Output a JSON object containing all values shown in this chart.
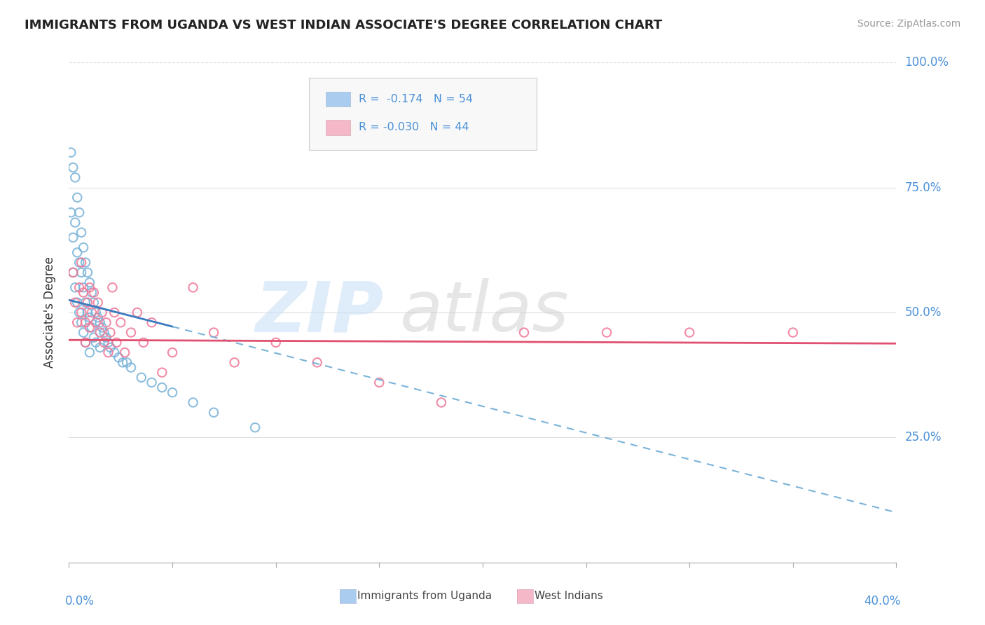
{
  "title": "IMMIGRANTS FROM UGANDA VS WEST INDIAN ASSOCIATE'S DEGREE CORRELATION CHART",
  "source_text": "Source: ZipAtlas.com",
  "ylabel": "Associate's Degree",
  "xlim": [
    0.0,
    0.4
  ],
  "ylim": [
    0.0,
    1.0
  ],
  "color_blue_dot": "#7ab3d9",
  "color_blue_fill": "#aaccee",
  "color_pink_dot": "#f07898",
  "color_pink_fill": "#f4b8c8",
  "color_trend_blue": "#3a7abf",
  "color_trend_pink": "#e05070",
  "color_accent": "#4a90d9",
  "legend1_r": "R =  -0.174",
  "legend1_n": "N = 54",
  "legend2_r": "R = -0.030",
  "legend2_n": "N = 44",
  "legend_label1": "Immigrants from Uganda",
  "legend_label2": "West Indians",
  "uganda_x": [
    0.001,
    0.001,
    0.002,
    0.002,
    0.002,
    0.003,
    0.003,
    0.003,
    0.004,
    0.004,
    0.004,
    0.005,
    0.005,
    0.005,
    0.006,
    0.006,
    0.006,
    0.007,
    0.007,
    0.007,
    0.008,
    0.008,
    0.008,
    0.009,
    0.009,
    0.01,
    0.01,
    0.01,
    0.011,
    0.011,
    0.012,
    0.012,
    0.013,
    0.013,
    0.014,
    0.015,
    0.015,
    0.016,
    0.017,
    0.018,
    0.019,
    0.02,
    0.022,
    0.024,
    0.026,
    0.028,
    0.03,
    0.035,
    0.04,
    0.045,
    0.05,
    0.06,
    0.07,
    0.09
  ],
  "uganda_y": [
    0.82,
    0.7,
    0.79,
    0.65,
    0.58,
    0.77,
    0.68,
    0.55,
    0.73,
    0.62,
    0.52,
    0.7,
    0.6,
    0.5,
    0.66,
    0.58,
    0.48,
    0.63,
    0.55,
    0.46,
    0.6,
    0.52,
    0.44,
    0.58,
    0.5,
    0.56,
    0.49,
    0.42,
    0.54,
    0.47,
    0.52,
    0.45,
    0.5,
    0.44,
    0.49,
    0.48,
    0.43,
    0.47,
    0.46,
    0.45,
    0.44,
    0.43,
    0.42,
    0.41,
    0.4,
    0.4,
    0.39,
    0.37,
    0.36,
    0.35,
    0.34,
    0.32,
    0.3,
    0.27
  ],
  "westindian_x": [
    0.002,
    0.003,
    0.004,
    0.005,
    0.006,
    0.006,
    0.007,
    0.008,
    0.008,
    0.009,
    0.01,
    0.01,
    0.011,
    0.012,
    0.013,
    0.014,
    0.015,
    0.016,
    0.017,
    0.018,
    0.019,
    0.02,
    0.021,
    0.022,
    0.023,
    0.025,
    0.027,
    0.03,
    0.033,
    0.036,
    0.04,
    0.045,
    0.05,
    0.06,
    0.07,
    0.08,
    0.1,
    0.12,
    0.15,
    0.18,
    0.22,
    0.26,
    0.3,
    0.35
  ],
  "westindian_y": [
    0.58,
    0.52,
    0.48,
    0.55,
    0.6,
    0.5,
    0.54,
    0.48,
    0.44,
    0.52,
    0.55,
    0.47,
    0.5,
    0.54,
    0.48,
    0.52,
    0.46,
    0.5,
    0.44,
    0.48,
    0.42,
    0.46,
    0.55,
    0.5,
    0.44,
    0.48,
    0.42,
    0.46,
    0.5,
    0.44,
    0.48,
    0.38,
    0.42,
    0.55,
    0.46,
    0.4,
    0.44,
    0.4,
    0.36,
    0.32,
    0.46,
    0.46,
    0.46,
    0.46
  ],
  "trend_blue_x0": 0.0,
  "trend_blue_y0": 0.525,
  "trend_blue_x1": 0.05,
  "trend_blue_y1": 0.43,
  "trend_blue_solid_end": 0.05,
  "trend_blue_dash_end": 0.4,
  "trend_blue_dash_y_end": 0.1,
  "trend_pink_x0": 0.0,
  "trend_pink_y0": 0.445,
  "trend_pink_x1": 0.4,
  "trend_pink_y1": 0.438
}
